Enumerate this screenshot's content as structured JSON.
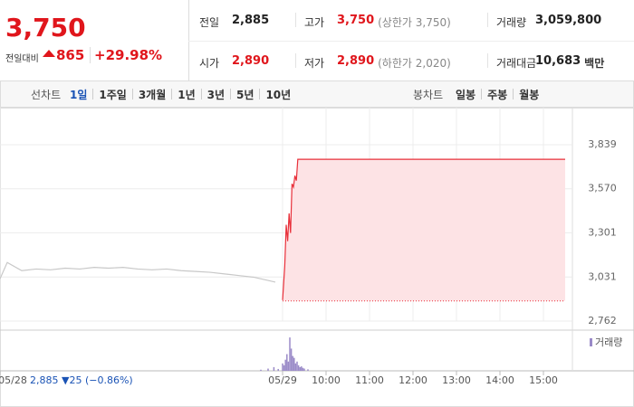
{
  "header": {
    "price": "3,750",
    "change_label": "전일대비",
    "change": "865",
    "change_pct": "+29.98%"
  },
  "summary": [
    [
      {
        "label": "전일",
        "value": "2,885"
      },
      {
        "label": "고가",
        "value": "3,750",
        "note": "(상한가 3,750)",
        "color": "#e0161c"
      },
      {
        "label": "거래량",
        "value": "3,059,800"
      }
    ],
    [
      {
        "label": "시가",
        "value": "2,890",
        "color": "#e0161c"
      },
      {
        "label": "저가",
        "value": "2,890",
        "note": "(하한가 2,020)",
        "color": "#e0161c"
      },
      {
        "label": "거래대금",
        "value": "10,683",
        "unit": "백만"
      }
    ]
  ],
  "tabs": {
    "line_label": "선차트",
    "line_periods": [
      "1일",
      "1주일",
      "3개월",
      "1년",
      "3년",
      "5년",
      "10년"
    ],
    "candle_label": "봉차트",
    "candle_periods": [
      "일봉",
      "주봉",
      "월봉"
    ]
  },
  "chart_data": {
    "type": "line",
    "xlim": [
      -390,
      400
    ],
    "ylim": [
      2762,
      3839
    ],
    "yticks": [
      {
        "value": 2762,
        "label": "2,762"
      },
      {
        "value": 3031,
        "label": "3,031"
      },
      {
        "value": 3301,
        "label": "3,301"
      },
      {
        "value": 3570,
        "label": "3,570"
      },
      {
        "value": 3839,
        "label": "3,839"
      }
    ],
    "xticks": [
      {
        "value": -390,
        "label": "05/28"
      },
      {
        "value": 0,
        "label": "05/29"
      },
      {
        "value": 60,
        "label": "10:00"
      },
      {
        "value": 120,
        "label": "11:00"
      },
      {
        "value": 180,
        "label": "12:00"
      },
      {
        "value": 240,
        "label": "13:00"
      },
      {
        "value": 300,
        "label": "14:00"
      },
      {
        "value": 360,
        "label": "15:00"
      }
    ],
    "baseline": 2885,
    "series": [
      {
        "color": "#c8c8c8",
        "x": [
          -390,
          -380,
          -360,
          -340,
          -320,
          -300,
          -280,
          -260,
          -240,
          -220,
          -200,
          -180,
          -160,
          -140,
          -120,
          -100,
          -80,
          -60,
          -40,
          -20,
          -10
        ],
        "values": [
          3020,
          3120,
          3070,
          3080,
          3075,
          3085,
          3080,
          3090,
          3085,
          3090,
          3080,
          3075,
          3080,
          3070,
          3065,
          3060,
          3050,
          3040,
          3030,
          3010,
          3000
        ]
      },
      {
        "color": "#e8303a",
        "fill": "#fde3e5",
        "x": [
          0,
          3,
          5,
          7,
          9,
          11,
          13,
          15,
          17,
          19,
          21,
          23,
          25,
          390
        ],
        "values": [
          2890,
          3100,
          3350,
          3250,
          3420,
          3300,
          3600,
          3580,
          3650,
          3620,
          3750,
          3750,
          3750,
          3750
        ]
      }
    ],
    "volume": {
      "label": "거래량",
      "color": "#9a8ac8",
      "ylim": [
        0,
        100
      ],
      "x": [
        -30,
        -20,
        -12,
        -6,
        0,
        2,
        4,
        6,
        8,
        10,
        12,
        14,
        16,
        18,
        20,
        22,
        24,
        26,
        28,
        30,
        35
      ],
      "values": [
        3,
        6,
        10,
        5,
        20,
        15,
        30,
        45,
        25,
        90,
        60,
        40,
        35,
        20,
        25,
        15,
        10,
        12,
        8,
        6,
        4
      ]
    },
    "prev_summary": "2,885 ▼25 (−0.86%)"
  }
}
